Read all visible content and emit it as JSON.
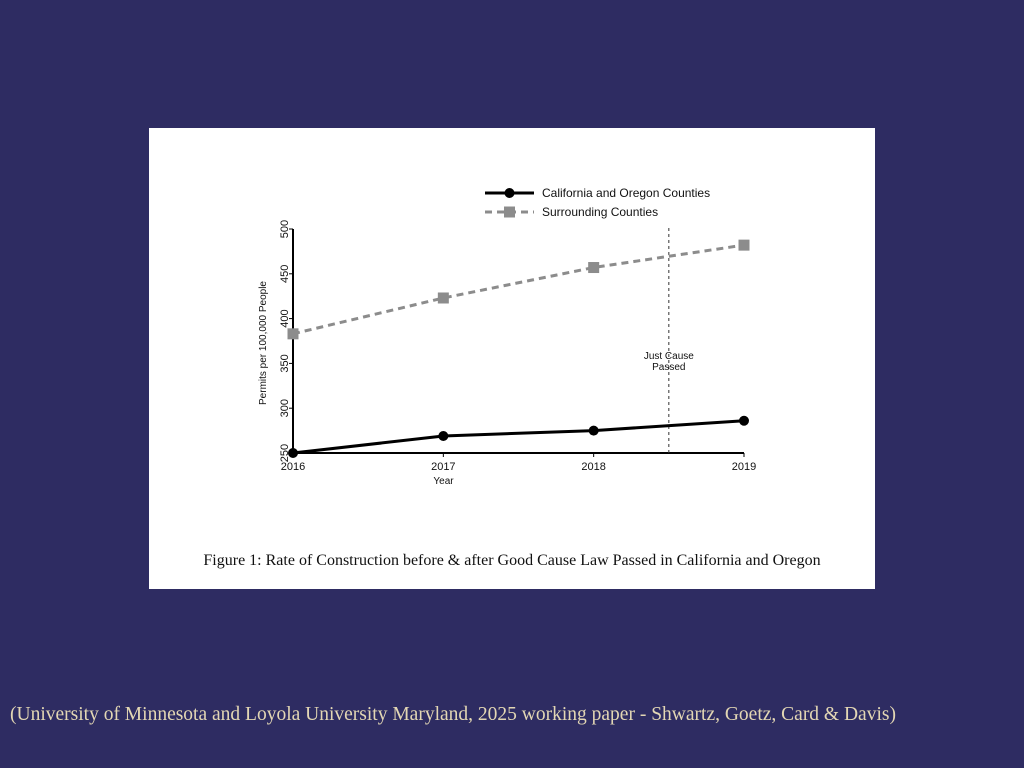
{
  "caption": "Figure 1: Rate of Construction before & after Good Cause Law Passed in California and Oregon",
  "citation": "(University of Minnesota and Loyola University Maryland, 2025 working paper - Shwartz, Goetz, Card & Davis)",
  "chart_data": {
    "type": "line",
    "title": "",
    "xlabel": "Year",
    "ylabel": "Permits per 100,000 People",
    "x": [
      2016,
      2017,
      2018,
      2019
    ],
    "xticks": [
      "2016",
      "2017",
      "2018",
      "2019"
    ],
    "yticks": [
      "250",
      "300",
      "350",
      "400",
      "450",
      "500"
    ],
    "ylim": [
      250,
      500
    ],
    "grid": false,
    "legend_position": "top",
    "series": [
      {
        "name": "California and Oregon Counties",
        "values": [
          250,
          269,
          275,
          286
        ],
        "color": "#000000",
        "style": "solid",
        "marker": "circle"
      },
      {
        "name": "Surrounding Counties",
        "values": [
          383,
          423,
          457,
          482
        ],
        "color": "#8c8c8c",
        "style": "dashed",
        "marker": "square"
      }
    ],
    "annotations": [
      {
        "x": 2018.5,
        "type": "vertical-dashed-line",
        "text_lines": [
          "Just Cause",
          "Passed"
        ]
      }
    ]
  }
}
